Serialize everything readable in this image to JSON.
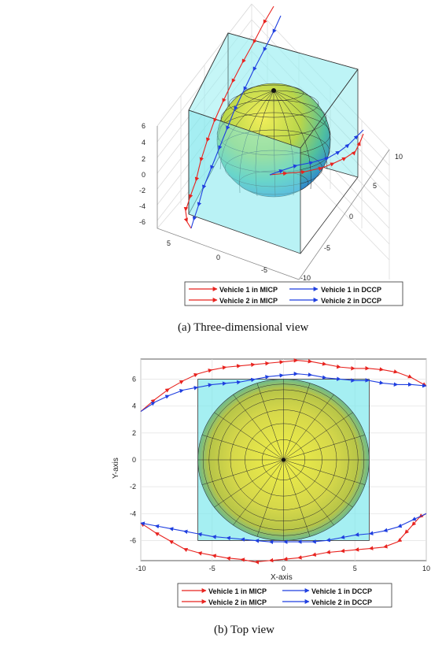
{
  "chart_data": [
    {
      "type": "line",
      "view": "3d",
      "caption": "(a) Three-dimensional view",
      "z_ticks": [
        "6",
        "4",
        "2",
        "0",
        "-2",
        "-4",
        "-6"
      ],
      "x_ticks": [
        "5",
        "0",
        "-5"
      ],
      "y_ticks": [
        "10",
        "5",
        "0",
        "-5",
        "-10"
      ],
      "legend": [
        "Vehicle 1 in MICP",
        "Vehicle 1 in DCCP",
        "Vehicle 2 in MICP",
        "Vehicle 2 in DCCP"
      ],
      "series_colors": {
        "micp": "#e8231f",
        "dccp": "#1f3fe0"
      }
    },
    {
      "type": "line",
      "view": "top",
      "caption": "(b) Top view",
      "xlabel": "X-axis",
      "ylabel": "Y-axis",
      "xlim": [
        -10,
        10
      ],
      "ylim": [
        -7.5,
        7.5
      ],
      "x_ticks": [
        "-10",
        "-5",
        "0",
        "5",
        "10"
      ],
      "y_ticks": [
        "6",
        "4",
        "2",
        "0",
        "-2",
        "-4",
        "-6"
      ],
      "obstacle_box": {
        "x": [
          -6,
          6
        ],
        "y": [
          -6,
          6
        ]
      },
      "sphere_radius": 6,
      "legend": [
        "Vehicle 1 in MICP",
        "Vehicle 1 in DCCP",
        "Vehicle 2 in MICP",
        "Vehicle 2 in DCCP"
      ],
      "series": [
        {
          "name": "Vehicle 1 in MICP",
          "color": "#e8231f",
          "x": [
            -10,
            -9,
            -8,
            -7,
            -6,
            -5,
            -4,
            -3,
            -2,
            -1,
            0,
            1,
            2,
            3,
            4,
            5,
            6,
            7,
            8,
            9,
            10
          ],
          "y": [
            3.6,
            4.5,
            5.3,
            5.9,
            6.4,
            6.7,
            6.9,
            7.0,
            7.1,
            7.2,
            7.3,
            7.4,
            7.3,
            7.1,
            6.9,
            6.8,
            6.8,
            6.7,
            6.5,
            6.1,
            5.5
          ]
        },
        {
          "name": "Vehicle 1 in DCCP",
          "color": "#1f3fe0",
          "x": [
            -10,
            -9,
            -8,
            -7,
            -6,
            -5,
            -4,
            -3,
            -2,
            -1,
            0,
            1,
            2,
            3,
            4,
            5,
            6,
            7,
            8,
            9,
            10
          ],
          "y": [
            3.6,
            4.3,
            4.8,
            5.2,
            5.4,
            5.6,
            5.7,
            5.8,
            6.0,
            6.2,
            6.3,
            6.4,
            6.3,
            6.1,
            6.0,
            5.9,
            5.9,
            5.7,
            5.6,
            5.6,
            5.5
          ]
        },
        {
          "name": "Vehicle 2 in MICP",
          "color": "#e8231f",
          "x": [
            10,
            9.5,
            9,
            8.5,
            8,
            7,
            6,
            5,
            4,
            3,
            2,
            1,
            0,
            -1,
            -2,
            -3,
            -4,
            -5,
            -6,
            -7,
            -8,
            -9,
            -10
          ],
          "y": [
            -4,
            -4.3,
            -4.9,
            -5.5,
            -6.1,
            -6.5,
            -6.6,
            -6.7,
            -6.8,
            -6.9,
            -7.1,
            -7.3,
            -7.4,
            -7.5,
            -7.6,
            -7.4,
            -7.3,
            -7.1,
            -6.9,
            -6.6,
            -6.0,
            -5.4,
            -4.7
          ]
        },
        {
          "name": "Vehicle 2 in DCCP",
          "color": "#1f3fe0",
          "x": [
            10,
            9,
            8,
            7,
            6,
            5,
            4,
            3,
            2,
            1,
            0,
            -1,
            -2,
            -3,
            -4,
            -5,
            -6,
            -7,
            -8,
            -9,
            -10
          ],
          "y": [
            -4,
            -4.5,
            -5.0,
            -5.3,
            -5.5,
            -5.6,
            -5.8,
            -6.0,
            -6.1,
            -6.1,
            -6.1,
            -6.1,
            -6.0,
            -5.9,
            -5.8,
            -5.7,
            -5.5,
            -5.3,
            -5.1,
            -4.9,
            -4.7
          ]
        }
      ]
    }
  ]
}
